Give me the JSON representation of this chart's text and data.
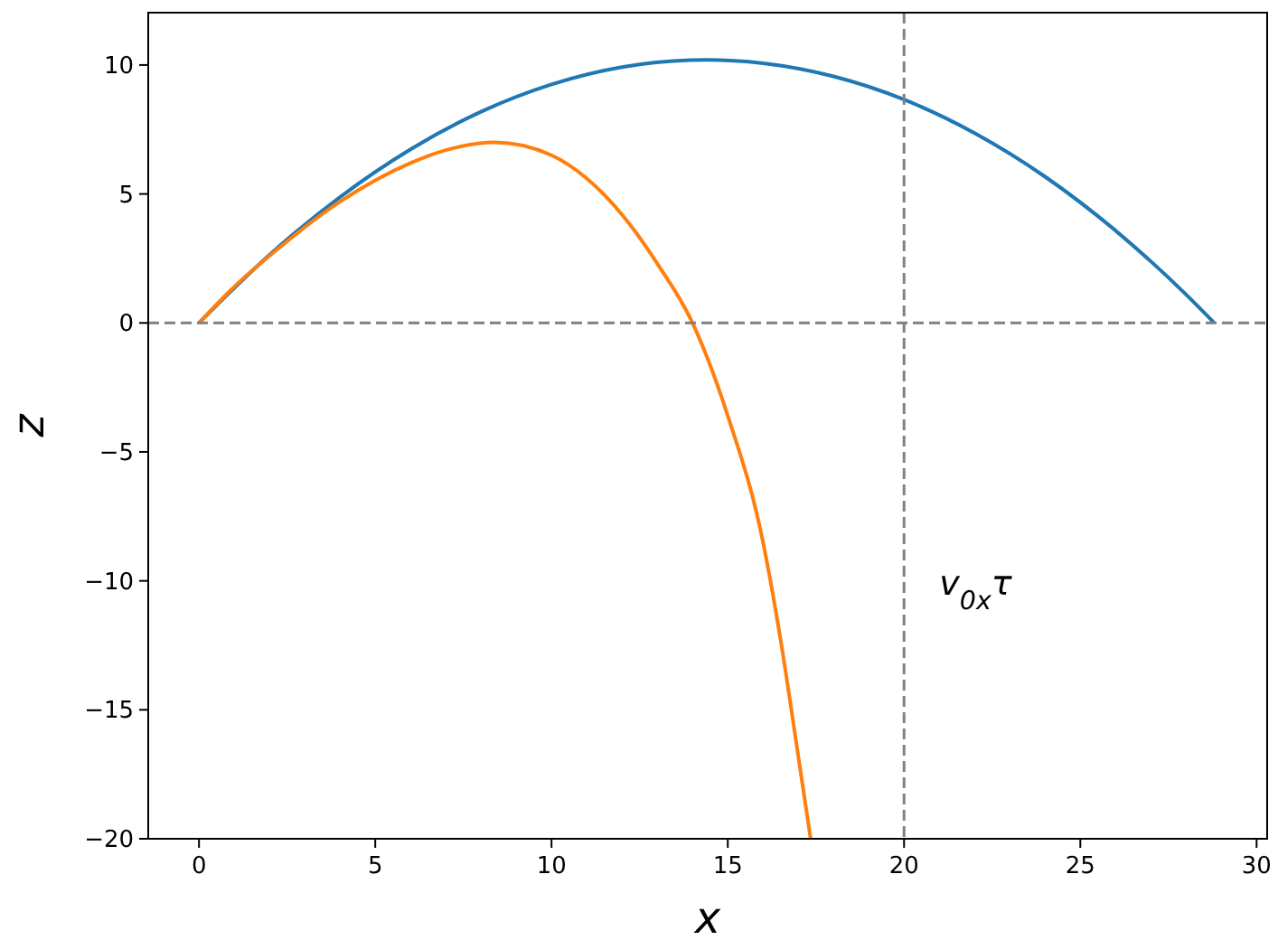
{
  "chart_data": {
    "type": "line",
    "xlabel": "x",
    "ylabel": "z",
    "xlim": [
      -1.44,
      30.3
    ],
    "ylim": [
      -20,
      12.03
    ],
    "xticks": [
      0,
      5,
      10,
      15,
      20,
      25,
      30
    ],
    "yticks": [
      {
        "value": -20,
        "label": "−20"
      },
      {
        "value": -15,
        "label": "−15"
      },
      {
        "value": -10,
        "label": "−10"
      },
      {
        "value": -5,
        "label": "−5"
      },
      0,
      5,
      10
    ],
    "grid": false,
    "marker": "none",
    "line_style": "solid",
    "series": [
      {
        "color": "#1f77b4",
        "x": [
          0,
          2,
          4,
          6,
          8,
          10,
          12,
          14.4,
          16,
          18,
          20,
          22,
          24,
          26,
          28,
          28.8
        ],
        "values": [
          0,
          2.64,
          4.88,
          6.73,
          8.19,
          9.25,
          9.92,
          10.2,
          10.07,
          9.56,
          8.66,
          7.36,
          5.67,
          3.58,
          1.1,
          0
        ]
      },
      {
        "color": "#ff7f0e",
        "x": [
          0,
          1,
          2,
          4,
          6,
          7,
          8.4,
          10,
          11,
          12,
          13,
          14,
          15,
          16,
          16.5,
          17,
          17.35
        ],
        "values": [
          0,
          1.4,
          2.6,
          4.7,
          6.2,
          6.7,
          7.0,
          6.5,
          5.6,
          4.2,
          2.3,
          0,
          -3.6,
          -8.5,
          -12.3,
          -16.8,
          -20
        ]
      }
    ],
    "ref_lines": [
      {
        "axis": "y",
        "value": 0,
        "color": "#808080",
        "line_style": "dashed"
      },
      {
        "axis": "x",
        "value": 20,
        "color": "#808080",
        "line_style": "dashed"
      }
    ],
    "annotations": [
      "v$_{0x}$τ"
    ]
  }
}
